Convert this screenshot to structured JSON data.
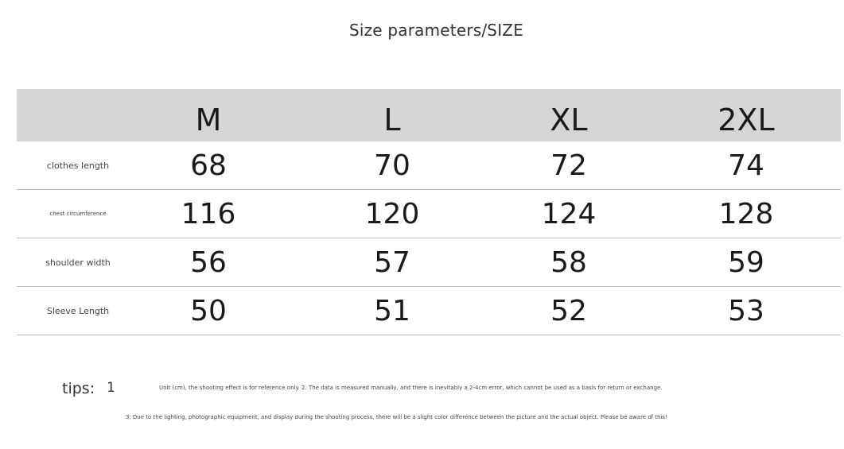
{
  "title": "Size parameters/SIZE",
  "table": {
    "headers": [
      "M",
      "L",
      "XL",
      "2XL"
    ],
    "rows": [
      {
        "label": "clothes length",
        "values": [
          "68",
          "70",
          "72",
          "74"
        ]
      },
      {
        "label": "chest circumference",
        "values": [
          "116",
          "120",
          "124",
          "128"
        ]
      },
      {
        "label": "shoulder width",
        "values": [
          "56",
          "57",
          "58",
          "59"
        ]
      },
      {
        "label": "Sleeve Length",
        "values": [
          "50",
          "51",
          "52",
          "53"
        ]
      }
    ]
  },
  "tips": {
    "label": "tips:",
    "number": "1",
    "line1": "Unit (cm), the shooting effect is for reference only. 2. The data is measured manually, and there is inevitably a 2-4cm error, which cannot be used as a basis for return or exchange.",
    "line2": "3. Due to the lighting, photographic equipment, and display during the shooting process, there will be a slight color difference between the picture and the actual object. Please be aware of this!"
  }
}
